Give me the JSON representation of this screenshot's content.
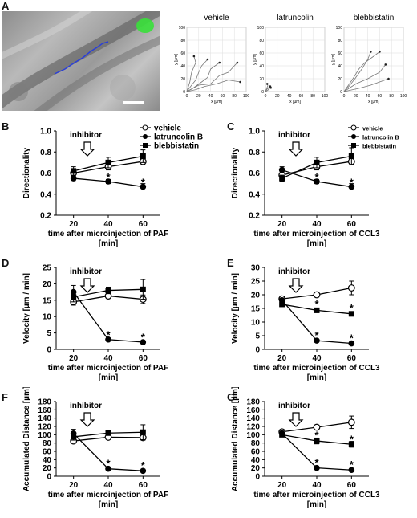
{
  "panel_letters": [
    "A",
    "B",
    "C",
    "D",
    "E",
    "F",
    "G"
  ],
  "inhibitor_label": "inhibitor",
  "track_titles": [
    "vehicle",
    "latruncolin",
    "blebbistatin"
  ],
  "track_axis": {
    "x_label": "x [µm]",
    "y_label": "y [µm]",
    "x_ticks": [
      "0",
      "20",
      "40",
      "60",
      "80",
      "100"
    ],
    "y_ticks": [
      "0",
      "20",
      "40",
      "60",
      "80",
      "100"
    ]
  },
  "chart_data": [
    {
      "id": "B",
      "type": "line",
      "xlabel": "time after microinjection of PAF",
      "xlabel2": "[min]",
      "ylabel": "Directionality",
      "x": [
        20,
        40,
        60
      ],
      "ylim": [
        0.2,
        1.0
      ],
      "yticks": [
        "0.2",
        "0.4",
        "0.6",
        "0.8",
        "1.0"
      ],
      "xticks": [
        "20",
        "40",
        "60"
      ],
      "legend": [
        "vehicle",
        "latruncolin B",
        "blebbistatin"
      ],
      "series": [
        {
          "name": "vehicle",
          "values": [
            0.6,
            0.66,
            0.71
          ],
          "err": [
            0.03,
            0.03,
            0.03
          ],
          "marker": "open-circle"
        },
        {
          "name": "latruncolin B",
          "values": [
            0.55,
            0.52,
            0.47
          ],
          "err": [
            0.02,
            0.02,
            0.03
          ],
          "marker": "filled-circle"
        },
        {
          "name": "blebbistatin",
          "values": [
            0.62,
            0.7,
            0.76
          ],
          "err": [
            0.04,
            0.05,
            0.06
          ],
          "marker": "square"
        }
      ],
      "stars": [
        {
          "x": 40,
          "y": 0.56
        },
        {
          "x": 60,
          "y": 0.51
        }
      ]
    },
    {
      "id": "C",
      "type": "line",
      "xlabel": "time after microinjection of CCL3",
      "xlabel2": "[min]",
      "ylabel": "Directionality",
      "x": [
        20,
        40,
        60
      ],
      "ylim": [
        0.2,
        1.0
      ],
      "yticks": [
        "0.2",
        "0.4",
        "0.6",
        "0.8",
        "1.0"
      ],
      "xticks": [
        "20",
        "40",
        "60"
      ],
      "legend": [
        "vehicle",
        "latruncolin B",
        "blebbistatin"
      ],
      "series": [
        {
          "name": "vehicle",
          "values": [
            0.58,
            0.66,
            0.71
          ],
          "err": [
            0.03,
            0.03,
            0.03
          ],
          "marker": "open-circle"
        },
        {
          "name": "latruncolin B",
          "values": [
            0.63,
            0.52,
            0.47
          ],
          "err": [
            0.03,
            0.02,
            0.03
          ],
          "marker": "filled-circle"
        },
        {
          "name": "blebbistatin",
          "values": [
            0.55,
            0.7,
            0.76
          ],
          "err": [
            0.03,
            0.05,
            0.08
          ],
          "marker": "square"
        }
      ],
      "stars": [
        {
          "x": 40,
          "y": 0.56
        },
        {
          "x": 60,
          "y": 0.51
        }
      ]
    },
    {
      "id": "D",
      "type": "line",
      "xlabel": "time after microinjection of PAF",
      "xlabel2": "[min]",
      "ylabel": "Velocity [µm / min]",
      "x": [
        20,
        40,
        60
      ],
      "ylim": [
        0,
        25
      ],
      "yticks": [
        "0",
        "5",
        "10",
        "15",
        "20",
        "25"
      ],
      "xticks": [
        "20",
        "40",
        "60"
      ],
      "series": [
        {
          "name": "vehicle",
          "values": [
            14.5,
            16.3,
            15.3
          ],
          "err": [
            1.0,
            1.2,
            1.3
          ],
          "marker": "open-circle"
        },
        {
          "name": "latruncolin B",
          "values": [
            17.5,
            3.0,
            2.2
          ],
          "err": [
            2.0,
            0.3,
            0.3
          ],
          "marker": "filled-circle"
        },
        {
          "name": "blebbistatin",
          "values": [
            16.0,
            18.0,
            18.3
          ],
          "err": [
            1.5,
            1.0,
            3.0
          ],
          "marker": "square"
        }
      ],
      "stars": [
        {
          "x": 40,
          "y": 4.3
        },
        {
          "x": 60,
          "y": 3.6
        }
      ]
    },
    {
      "id": "E",
      "type": "line",
      "xlabel": "time after microinjection of CCL3",
      "xlabel2": "[min]",
      "ylabel": "Velocity [µm / min]",
      "x": [
        20,
        40,
        60
      ],
      "ylim": [
        0,
        30
      ],
      "yticks": [
        "0",
        "5",
        "10",
        "15",
        "20",
        "25",
        "30"
      ],
      "xticks": [
        "20",
        "40",
        "60"
      ],
      "series": [
        {
          "name": "vehicle",
          "values": [
            18.5,
            20.0,
            22.5
          ],
          "err": [
            0.8,
            0.8,
            2.5
          ],
          "marker": "open-circle"
        },
        {
          "name": "latruncolin B",
          "values": [
            18.0,
            3.2,
            2.2
          ],
          "err": [
            0.8,
            0.3,
            0.3
          ],
          "marker": "filled-circle"
        },
        {
          "name": "blebbistatin",
          "values": [
            16.5,
            14.3,
            13.0
          ],
          "err": [
            0.8,
            0.8,
            0.8
          ],
          "marker": "square"
        }
      ],
      "stars": [
        {
          "x": 40,
          "y": 5.0
        },
        {
          "x": 60,
          "y": 4.0
        },
        {
          "x": 40,
          "y": 16.5
        },
        {
          "x": 60,
          "y": 15.0
        }
      ]
    },
    {
      "id": "F",
      "type": "line",
      "xlabel": "time after microinjection of PAF",
      "xlabel2": "[min]",
      "ylabel": "Accumulated Distance [µm]",
      "x": [
        20,
        40,
        60
      ],
      "ylim": [
        0,
        180
      ],
      "yticks": [
        "0",
        "20",
        "40",
        "60",
        "80",
        "100",
        "120",
        "140",
        "160",
        "180"
      ],
      "xticks": [
        "20",
        "40",
        "60"
      ],
      "series": [
        {
          "name": "vehicle",
          "values": [
            85,
            94,
            93
          ],
          "err": [
            5,
            5,
            6
          ],
          "marker": "open-circle"
        },
        {
          "name": "latruncolin B",
          "values": [
            103,
            18,
            13
          ],
          "err": [
            10,
            2,
            2
          ],
          "marker": "filled-circle"
        },
        {
          "name": "blebbistatin",
          "values": [
            95,
            104,
            106
          ],
          "err": [
            8,
            5,
            18
          ],
          "marker": "square"
        }
      ],
      "stars": [
        {
          "x": 40,
          "y": 30
        },
        {
          "x": 60,
          "y": 25
        }
      ]
    },
    {
      "id": "G",
      "type": "line",
      "xlabel": "time after microinjection of CCL3",
      "xlabel2": "[min]",
      "ylabel": "Accumulated Distance [µm]",
      "x": [
        20,
        40,
        60
      ],
      "ylim": [
        0,
        180
      ],
      "yticks": [
        "0",
        "20",
        "40",
        "60",
        "80",
        "100",
        "120",
        "140",
        "160",
        "180"
      ],
      "xticks": [
        "20",
        "40",
        "60"
      ],
      "series": [
        {
          "name": "vehicle",
          "values": [
            107,
            118,
            130
          ],
          "err": [
            5,
            5,
            15
          ],
          "marker": "open-circle"
        },
        {
          "name": "latruncolin B",
          "values": [
            103,
            20,
            15
          ],
          "err": [
            6,
            2,
            3
          ],
          "marker": "filled-circle"
        },
        {
          "name": "blebbistatin",
          "values": [
            100,
            85,
            77
          ],
          "err": [
            5,
            7,
            7
          ],
          "marker": "square"
        }
      ],
      "stars": [
        {
          "x": 40,
          "y": 32
        },
        {
          "x": 60,
          "y": 27
        },
        {
          "x": 40,
          "y": 98
        },
        {
          "x": 60,
          "y": 88
        }
      ]
    }
  ]
}
